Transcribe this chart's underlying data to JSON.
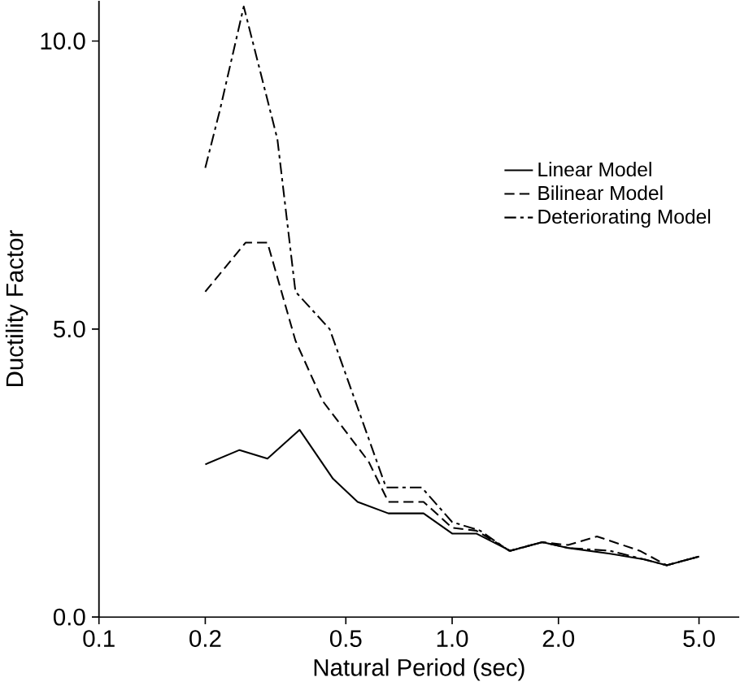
{
  "chart_data": {
    "type": "line",
    "xlabel": "Natural Period (sec)",
    "ylabel": "Ductility Factor",
    "log": "x",
    "xlim": [
      0.1,
      6.5
    ],
    "ylim": [
      0,
      10.7
    ],
    "xticks": [
      {
        "value": 0.1,
        "label": "0.1"
      },
      {
        "value": 0.2,
        "label": "0.2"
      },
      {
        "value": 0.5,
        "label": "0.5"
      },
      {
        "value": 1.0,
        "label": "1.0"
      },
      {
        "value": 2.0,
        "label": "2.0"
      },
      {
        "value": 5.0,
        "label": "5.0"
      }
    ],
    "yticks": [
      {
        "value": 0,
        "label": "0.0"
      },
      {
        "value": 5,
        "label": "5.0"
      },
      {
        "value": 10,
        "label": "10.0"
      }
    ],
    "grid": false,
    "legend": "right",
    "marker": "none",
    "series": [
      {
        "name": "Linear Model",
        "color": "#000000",
        "line_style": "solid",
        "x": [
          0.2,
          0.25,
          0.3,
          0.37,
          0.46,
          0.54,
          0.66,
          0.83,
          1.0,
          1.17,
          1.46,
          1.8,
          2.13,
          2.8,
          3.5,
          4.05,
          5.0
        ],
        "values": [
          2.65,
          2.9,
          2.75,
          3.25,
          2.4,
          2.0,
          1.8,
          1.8,
          1.45,
          1.45,
          1.15,
          1.3,
          1.2,
          1.1,
          1.0,
          0.9,
          1.05
        ]
      },
      {
        "name": "Bilinear Model",
        "color": "#000000",
        "line_style": "dashed",
        "x": [
          0.2,
          0.26,
          0.3,
          0.36,
          0.43,
          0.58,
          0.66,
          0.83,
          1.0,
          1.17,
          1.46,
          1.8,
          2.13,
          2.57,
          3.4,
          4.05,
          5.0
        ],
        "values": [
          5.65,
          6.5,
          6.5,
          4.8,
          3.75,
          2.7,
          2.0,
          2.0,
          1.55,
          1.5,
          1.15,
          1.3,
          1.25,
          1.4,
          1.15,
          0.9,
          1.05
        ]
      },
      {
        "name": "Deteriorating Model",
        "color": "#000000",
        "line_style": "dashdot",
        "x": [
          0.2,
          0.22,
          0.257,
          0.32,
          0.36,
          0.45,
          0.65,
          0.82,
          1.0,
          1.2,
          1.45,
          1.8,
          2.13,
          2.8,
          3.5,
          4.05,
          5.0
        ],
        "values": [
          7.8,
          8.8,
          10.6,
          8.3,
          5.65,
          5.0,
          2.25,
          2.25,
          1.65,
          1.5,
          1.15,
          1.3,
          1.2,
          1.15,
          1.0,
          0.9,
          1.05
        ]
      }
    ]
  }
}
